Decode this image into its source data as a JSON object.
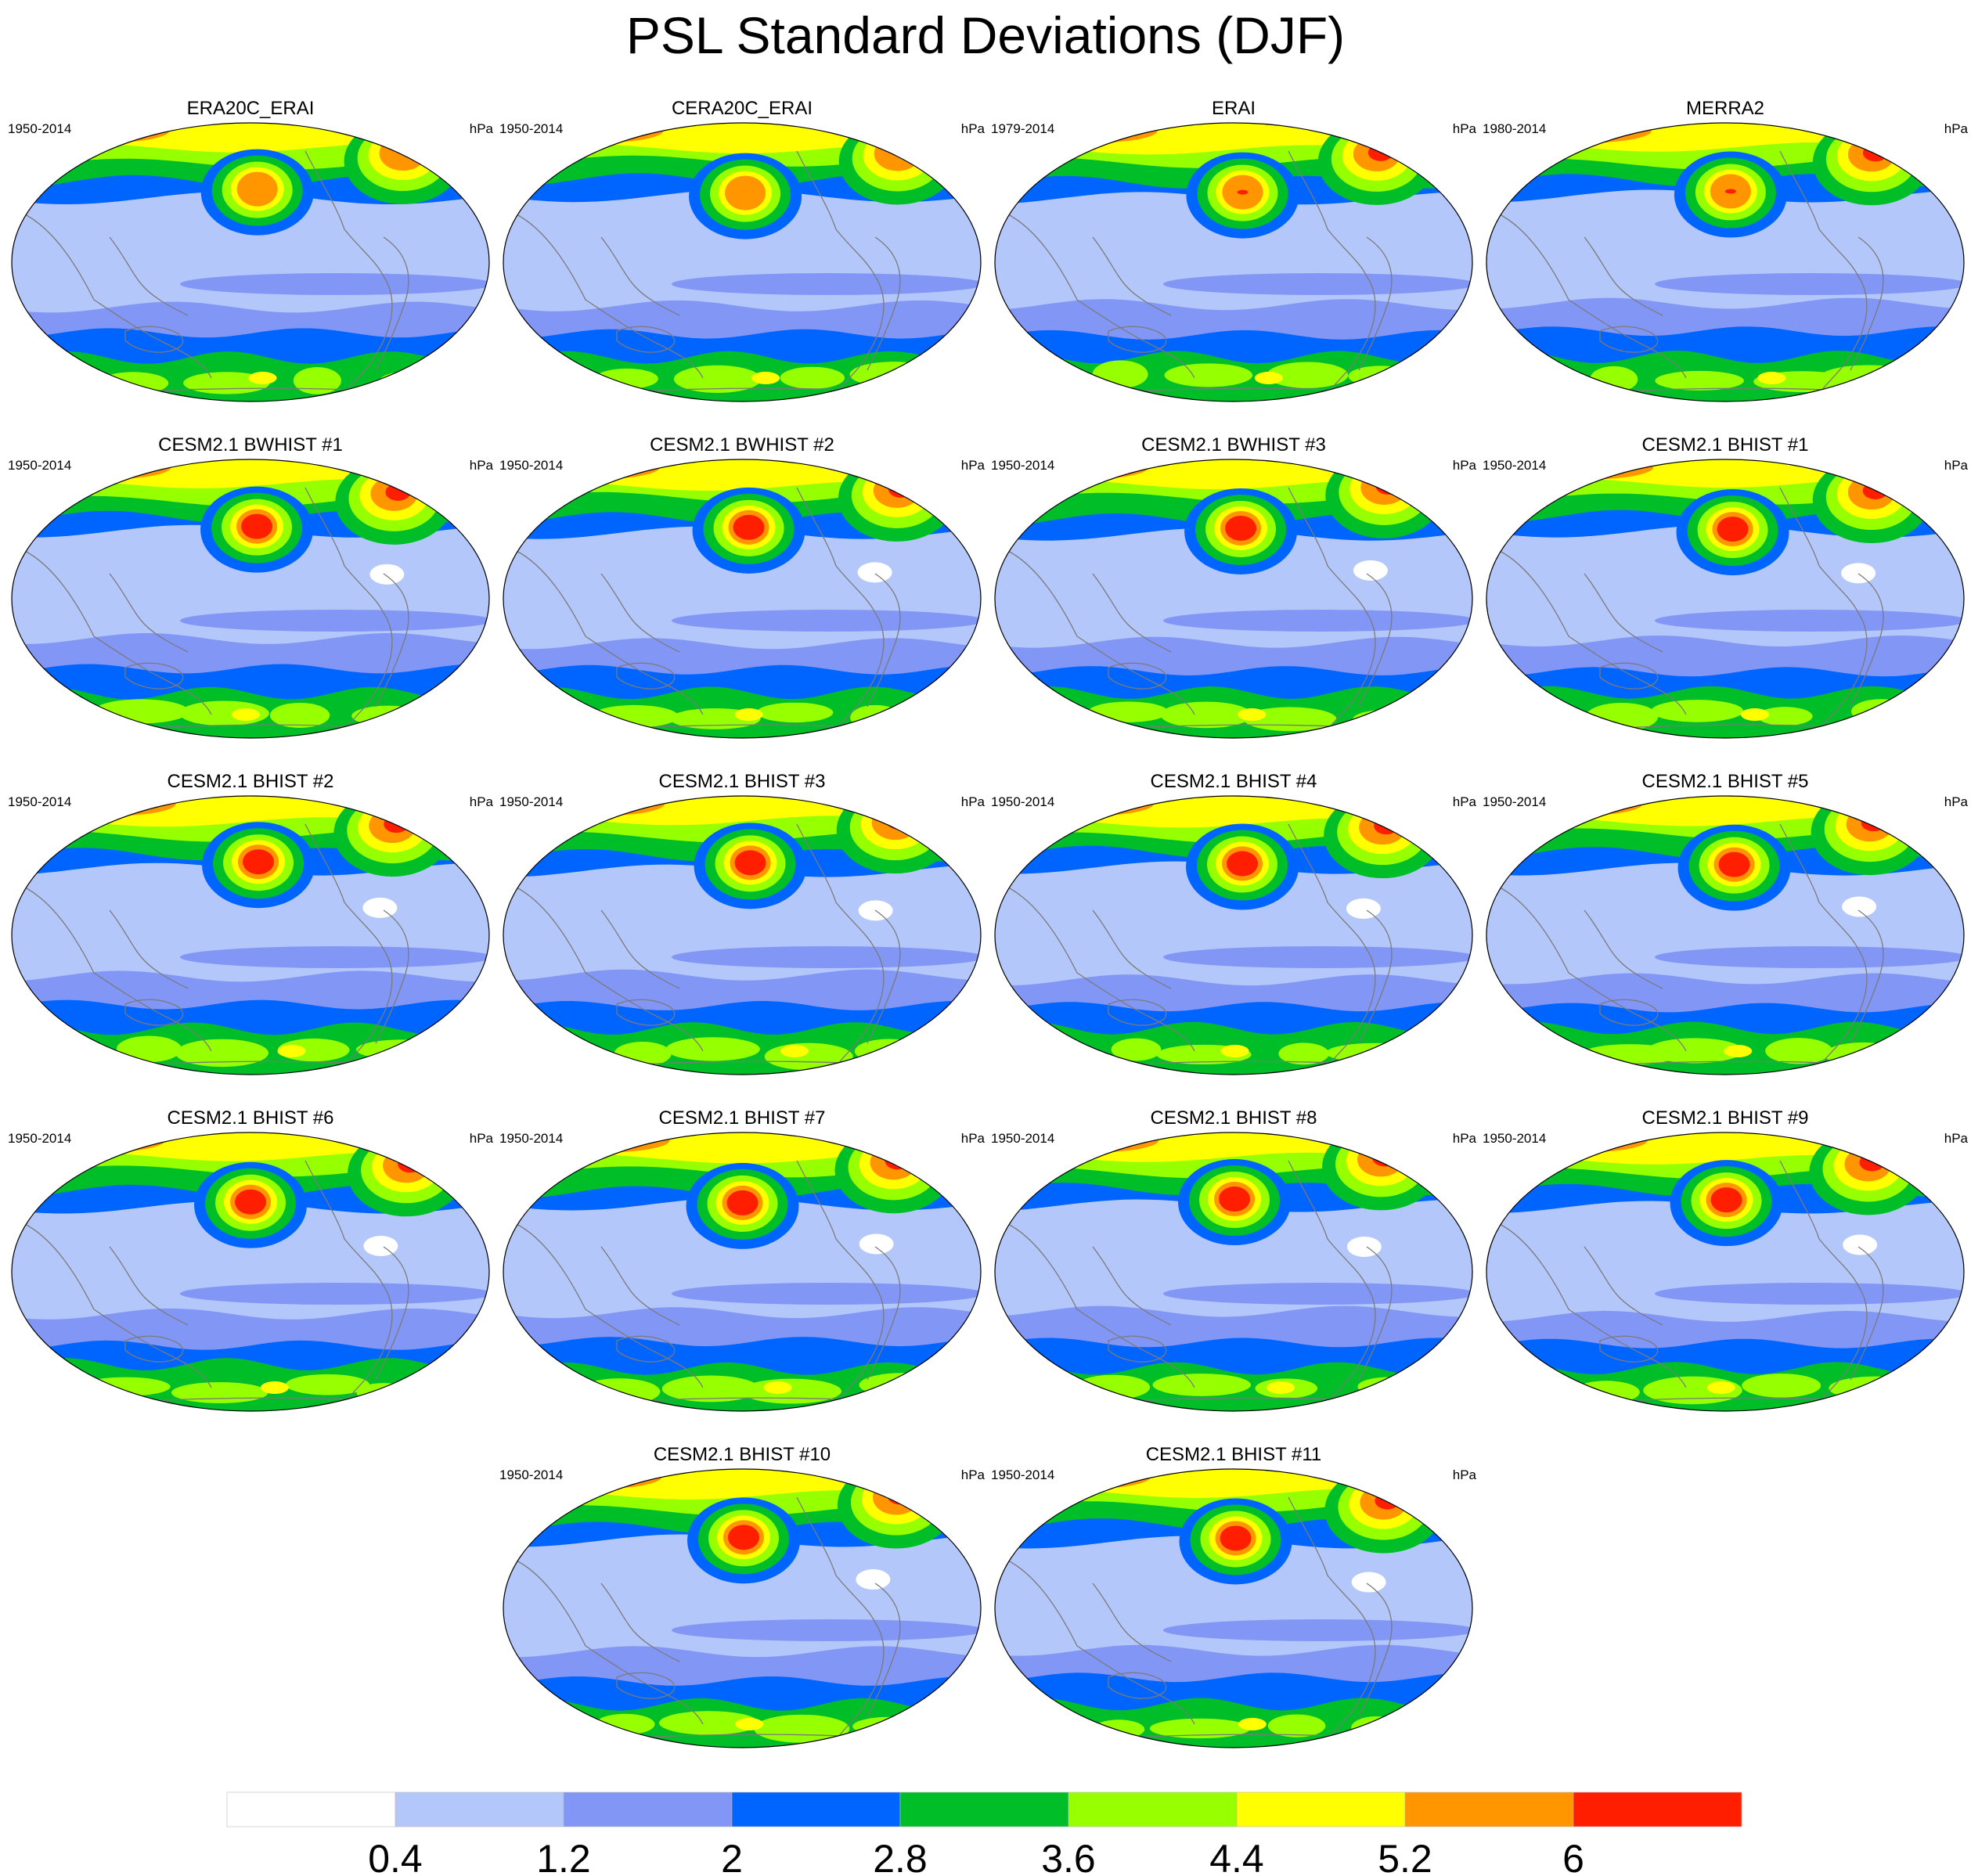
{
  "title": "PSL Standard Deviations (DJF)",
  "units": "hPa",
  "colors": {
    "levels": [
      "#ffffff",
      "#b4c7fa",
      "#8296f5",
      "#0064ff",
      "#00be28",
      "#96ff00",
      "#ffff00",
      "#ff9600",
      "#ff1e00"
    ],
    "coast": "#7a7a7a",
    "outline": "#000000"
  },
  "panels": [
    {
      "title": "ERA20C_ERAI",
      "years": "1950-2014",
      "units": "hPa"
    },
    {
      "title": "CERA20C_ERAI",
      "years": "1950-2014",
      "units": "hPa"
    },
    {
      "title": "ERAI",
      "years": "1979-2014",
      "units": "hPa"
    },
    {
      "title": "MERRA2",
      "years": "1980-2014",
      "units": "hPa"
    },
    {
      "title": "CESM2.1 BWHIST #1",
      "years": "1950-2014",
      "units": "hPa"
    },
    {
      "title": "CESM2.1 BWHIST #2",
      "years": "1950-2014",
      "units": "hPa"
    },
    {
      "title": "CESM2.1 BWHIST #3",
      "years": "1950-2014",
      "units": "hPa"
    },
    {
      "title": "CESM2.1 BHIST #1",
      "years": "1950-2014",
      "units": "hPa"
    },
    {
      "title": "CESM2.1 BHIST #2",
      "years": "1950-2014",
      "units": "hPa"
    },
    {
      "title": "CESM2.1 BHIST #3",
      "years": "1950-2014",
      "units": "hPa"
    },
    {
      "title": "CESM2.1 BHIST #4",
      "years": "1950-2014",
      "units": "hPa"
    },
    {
      "title": "CESM2.1 BHIST #5",
      "years": "1950-2014",
      "units": "hPa"
    },
    {
      "title": "CESM2.1 BHIST #6",
      "years": "1950-2014",
      "units": "hPa"
    },
    {
      "title": "CESM2.1 BHIST #7",
      "years": "1950-2014",
      "units": "hPa"
    },
    {
      "title": "CESM2.1 BHIST #8",
      "years": "1950-2014",
      "units": "hPa"
    },
    {
      "title": "CESM2.1 BHIST #9",
      "years": "1950-2014",
      "units": "hPa"
    },
    {
      "title": "CESM2.1 BHIST #10",
      "years": "1950-2014",
      "units": "hPa"
    },
    {
      "title": "CESM2.1 BHIST #11",
      "years": "1950-2014",
      "units": "hPa"
    }
  ],
  "chart_data": {
    "type": "heatmap",
    "title": "PSL Standard Deviations (DJF)",
    "variable": "PSL standard deviation",
    "season": "DJF",
    "units": "hPa",
    "projection": "Pacific-centered global map",
    "contour_levels": [
      0.4,
      1.2,
      2,
      2.8,
      3.6,
      4.4,
      5.2,
      6
    ],
    "colorbar_labels": [
      "0.4",
      "1.2",
      "2",
      "2.8",
      "3.6",
      "4.4",
      "5.2",
      "6"
    ],
    "colorbar_placement": "bottom",
    "panel_peak_level_index": [
      7,
      7,
      8,
      8,
      8,
      8,
      8,
      8,
      8,
      8,
      8,
      8,
      8,
      8,
      8,
      8,
      8,
      8
    ]
  }
}
